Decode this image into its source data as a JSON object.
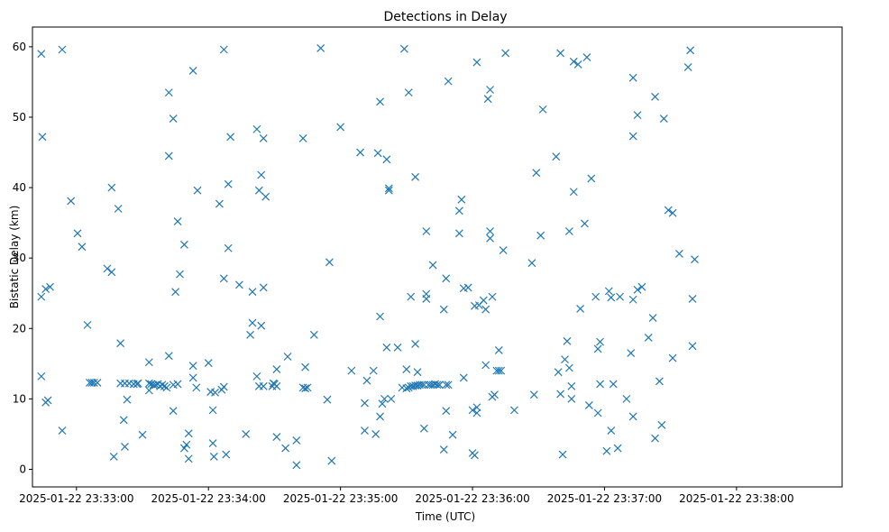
{
  "chart_data": {
    "type": "scatter",
    "title": "Detections in Delay",
    "xlabel": "Time (UTC)",
    "ylabel": "Bistatic Delay (km)",
    "marker": "x",
    "color": "#1f77b4",
    "grid": false,
    "xlim_seconds": [
      -20,
      348
    ],
    "ylim": [
      -2.5,
      62.8
    ],
    "x_origin": "2025-01-22 23:33:00",
    "x_unit": "seconds after 2025-01-22 23:33:00",
    "x_ticks": [
      {
        "value": 0,
        "label": "2025-01-22 23:33:00"
      },
      {
        "value": 60,
        "label": "2025-01-22 23:34:00"
      },
      {
        "value": 120,
        "label": "2025-01-22 23:35:00"
      },
      {
        "value": 180,
        "label": "2025-01-22 23:36:00"
      },
      {
        "value": 240,
        "label": "2025-01-22 23:37:00"
      },
      {
        "value": 300,
        "label": "2025-01-22 23:38:00"
      }
    ],
    "y_ticks": [
      {
        "value": 0,
        "label": "0"
      },
      {
        "value": 10,
        "label": "10"
      },
      {
        "value": 20,
        "label": "20"
      },
      {
        "value": 30,
        "label": "30"
      },
      {
        "value": 40,
        "label": "40"
      },
      {
        "value": 50,
        "label": "50"
      },
      {
        "value": 60,
        "label": "60"
      }
    ],
    "points": [
      [
        -16,
        59
      ],
      [
        -15.5,
        47.2
      ],
      [
        -16,
        24.5
      ],
      [
        -14,
        25.6
      ],
      [
        -12,
        25.9
      ],
      [
        -16,
        13.2
      ],
      [
        -14,
        9.5
      ],
      [
        -13,
        9.8
      ],
      [
        -6.5,
        5.5
      ],
      [
        -6.5,
        59.6
      ],
      [
        -2.5,
        38.1
      ],
      [
        0.5,
        33.5
      ],
      [
        2.5,
        31.6
      ],
      [
        5,
        20.5
      ],
      [
        6,
        12.3
      ],
      [
        7,
        12.3
      ],
      [
        8,
        12.3
      ],
      [
        9.5,
        12.3
      ],
      [
        14,
        28.5
      ],
      [
        16,
        28
      ],
      [
        16,
        40
      ],
      [
        17,
        1.8
      ],
      [
        19,
        37
      ],
      [
        20,
        17.9
      ],
      [
        20,
        12.2
      ],
      [
        21.5,
        7
      ],
      [
        22,
        12.2
      ],
      [
        23,
        9.9
      ],
      [
        24,
        12.2
      ],
      [
        26,
        12.1
      ],
      [
        27.5,
        12.1
      ],
      [
        28,
        12.2
      ],
      [
        22,
        3.2
      ],
      [
        30,
        4.9
      ],
      [
        33,
        15.2
      ],
      [
        33,
        12.2
      ],
      [
        33,
        11.2
      ],
      [
        34,
        12.1
      ],
      [
        35,
        12
      ],
      [
        36,
        12
      ],
      [
        37,
        12.1
      ],
      [
        38,
        11.8
      ],
      [
        39,
        12
      ],
      [
        40,
        11.8
      ],
      [
        41,
        11.6
      ],
      [
        42,
        16.1
      ],
      [
        42,
        44.5
      ],
      [
        42,
        53.5
      ],
      [
        44,
        49.8
      ],
      [
        44,
        8.3
      ],
      [
        44,
        12
      ],
      [
        45,
        25.2
      ],
      [
        46,
        12.1
      ],
      [
        46,
        35.2
      ],
      [
        47,
        27.7
      ],
      [
        49,
        31.9
      ],
      [
        49,
        3
      ],
      [
        50,
        3.5
      ],
      [
        51,
        5.1
      ],
      [
        51,
        1.5
      ],
      [
        53,
        56.6
      ],
      [
        53,
        14.7
      ],
      [
        53,
        13
      ],
      [
        54.5,
        11.6
      ],
      [
        55,
        39.6
      ],
      [
        60,
        15.1
      ],
      [
        61,
        11
      ],
      [
        62,
        3.7
      ],
      [
        62,
        8.4
      ],
      [
        62.5,
        1.8
      ],
      [
        63,
        10.9
      ],
      [
        65,
        37.7
      ],
      [
        66,
        11.3
      ],
      [
        67,
        11.7
      ],
      [
        67,
        59.6
      ],
      [
        67,
        27.1
      ],
      [
        68,
        2.1
      ],
      [
        69,
        40.5
      ],
      [
        69,
        31.4
      ],
      [
        70,
        47.2
      ],
      [
        74,
        26.2
      ],
      [
        77,
        5
      ],
      [
        79,
        19.1
      ],
      [
        80,
        25.2
      ],
      [
        80,
        20.8
      ],
      [
        82,
        48.3
      ],
      [
        82,
        13.2
      ],
      [
        83,
        39.6
      ],
      [
        83,
        11.8
      ],
      [
        84,
        41.8
      ],
      [
        84,
        20.4
      ],
      [
        85,
        47
      ],
      [
        85,
        25.8
      ],
      [
        85,
        11.8
      ],
      [
        86,
        38.7
      ],
      [
        89,
        11.8
      ],
      [
        89.5,
        12.2
      ],
      [
        90,
        12.1
      ],
      [
        91,
        11.8
      ],
      [
        91,
        14.2
      ],
      [
        91,
        4.6
      ],
      [
        95,
        3
      ],
      [
        96,
        16
      ],
      [
        100,
        0.6
      ],
      [
        100,
        4.1
      ],
      [
        103,
        47
      ],
      [
        103,
        11.6
      ],
      [
        104,
        14.5
      ],
      [
        104,
        11.5
      ],
      [
        105,
        11.6
      ],
      [
        108,
        19.1
      ],
      [
        111,
        59.8
      ],
      [
        114,
        9.9
      ],
      [
        115,
        29.4
      ],
      [
        116,
        1.2
      ],
      [
        120,
        48.6
      ],
      [
        125,
        14
      ],
      [
        129,
        45
      ],
      [
        131,
        5.5
      ],
      [
        132,
        12.6
      ],
      [
        131,
        9.4
      ],
      [
        135,
        14
      ],
      [
        136,
        5
      ],
      [
        137,
        44.9
      ],
      [
        138,
        21.7
      ],
      [
        138,
        52.2
      ],
      [
        138,
        7.5
      ],
      [
        139,
        9.3
      ],
      [
        140,
        10
      ],
      [
        141,
        44
      ],
      [
        141,
        17.3
      ],
      [
        142,
        39.9
      ],
      [
        142,
        39.6
      ],
      [
        143,
        10
      ],
      [
        146,
        17.3
      ],
      [
        148,
        11.6
      ],
      [
        149,
        59.7
      ],
      [
        150,
        11.5
      ],
      [
        150,
        14.2
      ],
      [
        151,
        53.5
      ],
      [
        151,
        11.6
      ],
      [
        152,
        11.8
      ],
      [
        152,
        24.5
      ],
      [
        153,
        11.8
      ],
      [
        154,
        11.9
      ],
      [
        154,
        17.8
      ],
      [
        154,
        41.5
      ],
      [
        155,
        11.9
      ],
      [
        155,
        13.8
      ],
      [
        156,
        12
      ],
      [
        157,
        12
      ],
      [
        158,
        12
      ],
      [
        158,
        5.8
      ],
      [
        159,
        24.9
      ],
      [
        159,
        24.2
      ],
      [
        159,
        33.8
      ],
      [
        160,
        12
      ],
      [
        161,
        12
      ],
      [
        162,
        12
      ],
      [
        163,
        12.1
      ],
      [
        164,
        12
      ],
      [
        165,
        12
      ],
      [
        162,
        29
      ],
      [
        165,
        12
      ],
      [
        167,
        2.8
      ],
      [
        167,
        22.7
      ],
      [
        168,
        8.3
      ],
      [
        168,
        12
      ],
      [
        168,
        27.1
      ],
      [
        169,
        12
      ],
      [
        169,
        55.1
      ],
      [
        171,
        4.9
      ],
      [
        174,
        36.7
      ],
      [
        174,
        33.5
      ],
      [
        175,
        38.3
      ],
      [
        176,
        25.7
      ],
      [
        176,
        13
      ],
      [
        178,
        25.8
      ],
      [
        180,
        2.3
      ],
      [
        180,
        8.4
      ],
      [
        181,
        2
      ],
      [
        181,
        23.2
      ],
      [
        182,
        8.8
      ],
      [
        182,
        8
      ],
      [
        182,
        57.8
      ],
      [
        183,
        23.3
      ],
      [
        185,
        24
      ],
      [
        186,
        14.8
      ],
      [
        186,
        22.7
      ],
      [
        187,
        52.6
      ],
      [
        188,
        53.9
      ],
      [
        188,
        33.8
      ],
      [
        188,
        32.8
      ],
      [
        189,
        24.5
      ],
      [
        189,
        10.3
      ],
      [
        190,
        10.6
      ],
      [
        191,
        14
      ],
      [
        192,
        14
      ],
      [
        192,
        16.9
      ],
      [
        193,
        14
      ],
      [
        194,
        31.1
      ],
      [
        195,
        59.1
      ],
      [
        199,
        8.4
      ],
      [
        207,
        29.3
      ],
      [
        208,
        10.6
      ],
      [
        209,
        42.1
      ],
      [
        211,
        33.2
      ],
      [
        212,
        51.1
      ],
      [
        218,
        44.4
      ],
      [
        219,
        13.8
      ],
      [
        220,
        59.1
      ],
      [
        220,
        10.7
      ],
      [
        221,
        2.1
      ],
      [
        222,
        15.6
      ],
      [
        223,
        18.2
      ],
      [
        224,
        14.4
      ],
      [
        224,
        33.8
      ],
      [
        225,
        11.8
      ],
      [
        225,
        10
      ],
      [
        226,
        39.4
      ],
      [
        226,
        57.9
      ],
      [
        228,
        57.5
      ],
      [
        229,
        22.8
      ],
      [
        231,
        34.9
      ],
      [
        232,
        58.5
      ],
      [
        233,
        9.1
      ],
      [
        234,
        41.3
      ],
      [
        236,
        24.5
      ],
      [
        237,
        8
      ],
      [
        237,
        17.1
      ],
      [
        238,
        18.1
      ],
      [
        238,
        12.1
      ],
      [
        241,
        2.6
      ],
      [
        242,
        25.3
      ],
      [
        243,
        5.5
      ],
      [
        243,
        24.4
      ],
      [
        244,
        12.1
      ],
      [
        246,
        3
      ],
      [
        247,
        24.5
      ],
      [
        250,
        10
      ],
      [
        252,
        16.5
      ],
      [
        253,
        47.3
      ],
      [
        253,
        55.6
      ],
      [
        253,
        24.1
      ],
      [
        253,
        7.5
      ],
      [
        255,
        50.3
      ],
      [
        255,
        25.5
      ],
      [
        257,
        25.9
      ],
      [
        260,
        18.7
      ],
      [
        262,
        21.5
      ],
      [
        263,
        4.4
      ],
      [
        263,
        52.9
      ],
      [
        265,
        12.5
      ],
      [
        266,
        6.3
      ],
      [
        267,
        49.8
      ],
      [
        269,
        36.8
      ],
      [
        271,
        36.4
      ],
      [
        271,
        15.8
      ],
      [
        274,
        30.6
      ],
      [
        278,
        57.1
      ],
      [
        279,
        59.5
      ],
      [
        280,
        24.2
      ],
      [
        280,
        17.5
      ],
      [
        281,
        29.8
      ]
    ]
  }
}
